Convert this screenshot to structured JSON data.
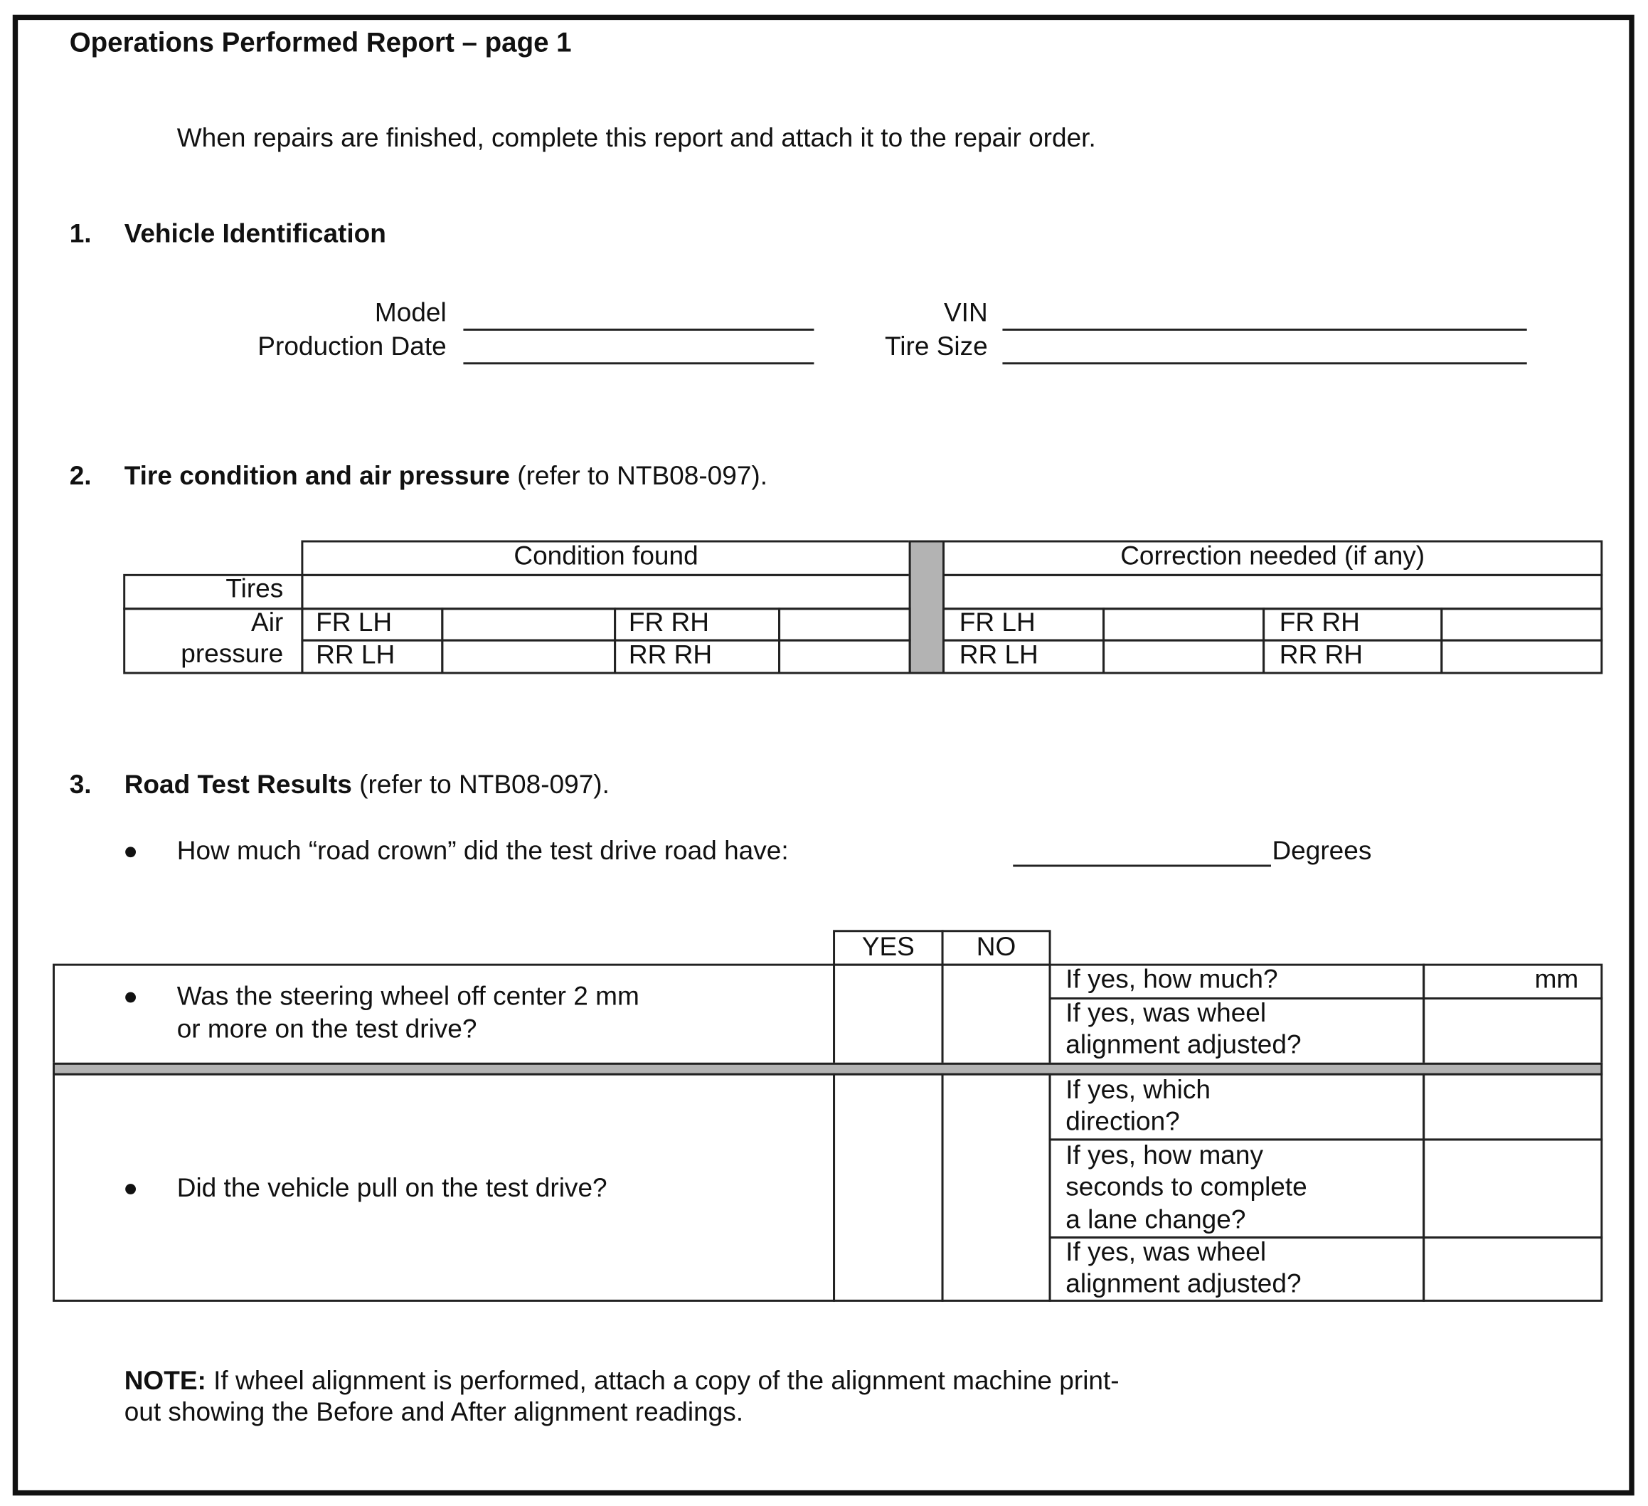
{
  "title": "Operations Performed Report – page 1",
  "intro": "When repairs are finished, complete this report and attach it to the repair order.",
  "section1": {
    "number": "1.",
    "heading": "Vehicle Identification",
    "fields": {
      "model": "Model",
      "vin": "VIN",
      "production_date": "Production Date",
      "tire_size": "Tire Size"
    }
  },
  "section2": {
    "number": "2.",
    "heading": "Tire condition and air pressure",
    "ref": " (refer to NTB08-097).",
    "table": {
      "col_condition": "Condition found",
      "col_correction": "Correction needed (if any)",
      "row_tires": "Tires",
      "row_air": "Air",
      "row_pressure": "pressure",
      "fr_lh": "FR LH",
      "fr_rh": "FR RH",
      "rr_lh": "RR LH",
      "rr_rh": "RR RH"
    }
  },
  "section3": {
    "number": "3.",
    "heading": "Road Test Results",
    "ref": " (refer to NTB08-097).",
    "road_crown_question": "How much “road crown” did the test drive road have:",
    "road_crown_unit": "Degrees",
    "table": {
      "yes": "YES",
      "no": "NO",
      "q1_line1": "Was the steering wheel off center 2 mm",
      "q1_line2": "or more on the test drive?",
      "q1_sub1": "If yes, how much?",
      "q1_sub1_unit": "mm",
      "q1_sub2_line1": "If yes, was wheel",
      "q1_sub2_line2": "alignment adjusted?",
      "q2": "Did the vehicle pull on the test drive?",
      "q2_sub1_line1": "If yes, which",
      "q2_sub1_line2": "direction?",
      "q2_sub2_line1": "If yes, how many",
      "q2_sub2_line2": "seconds to complete",
      "q2_sub2_line3": "a lane change?",
      "q2_sub3_line1": "If yes, was wheel",
      "q2_sub3_line2": "alignment adjusted?"
    }
  },
  "note": {
    "label": "NOTE:",
    "line1": " If wheel alignment is performed, attach a copy of the alignment machine print-",
    "line2": "out showing the Before and After alignment readings."
  }
}
